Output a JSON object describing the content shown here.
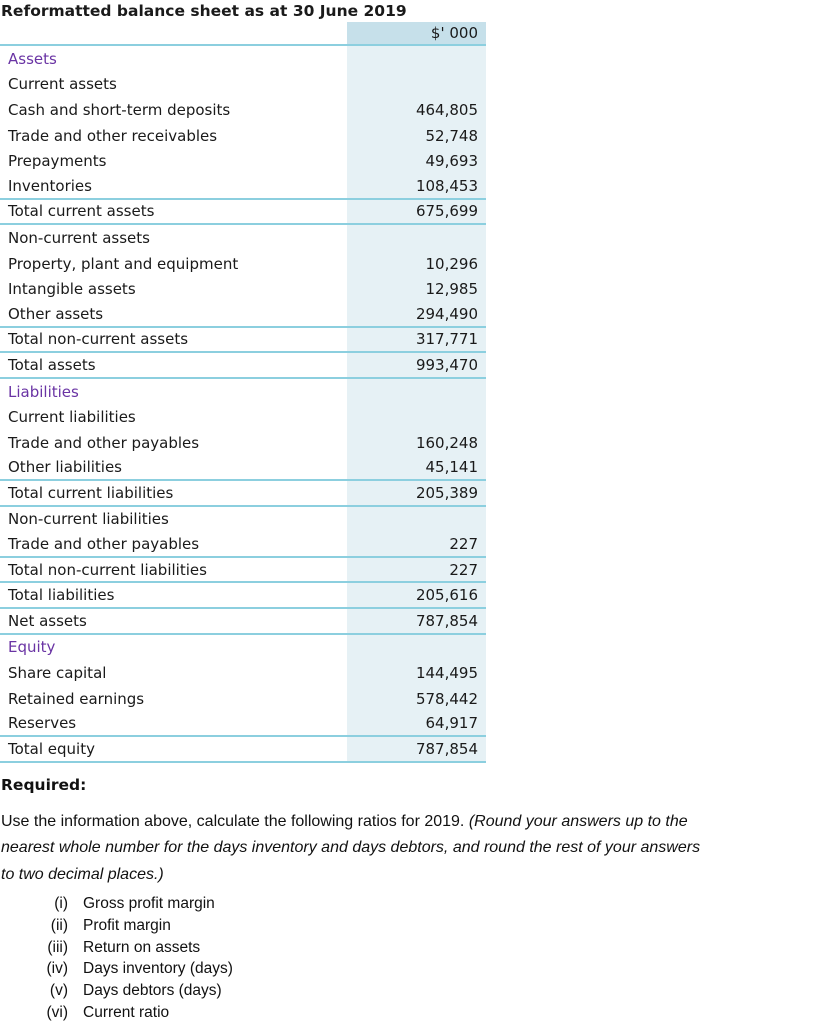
{
  "title": "Reformatted balance sheet as at 30 June 2019",
  "table": {
    "unit_header": "$' 000",
    "rows": [
      {
        "label": "Assets",
        "value": "",
        "style": "section"
      },
      {
        "label": "Current assets",
        "value": ""
      },
      {
        "label": "Cash and short-term deposits",
        "value": "464,805"
      },
      {
        "label": "Trade and other receivables",
        "value": "52,748"
      },
      {
        "label": "Prepayments",
        "value": "49,693"
      },
      {
        "label": "Inventories",
        "value": "108,453",
        "border": true
      },
      {
        "label": "Total current assets",
        "value": "675,699",
        "border": true
      },
      {
        "label": "Non-current assets",
        "value": ""
      },
      {
        "label": "Property, plant and equipment",
        "value": "10,296"
      },
      {
        "label": "Intangible assets",
        "value": "12,985"
      },
      {
        "label": "Other assets",
        "value": "294,490",
        "border": true
      },
      {
        "label": "Total non-current assets",
        "value": "317,771",
        "border": true
      },
      {
        "label": "Total assets",
        "value": "993,470",
        "border": true
      },
      {
        "label": "Liabilities",
        "value": "",
        "style": "section"
      },
      {
        "label": "Current liabilities",
        "value": ""
      },
      {
        "label": "Trade and other payables",
        "value": "160,248"
      },
      {
        "label": "Other liabilities",
        "value": "45,141",
        "border": true
      },
      {
        "label": "Total current liabilities",
        "value": "205,389",
        "border": true
      },
      {
        "label": "Non-current liabilities",
        "value": ""
      },
      {
        "label": "Trade and other payables",
        "value": "227",
        "border": true
      },
      {
        "label": "Total non-current liabilities",
        "value": "227",
        "border": true
      },
      {
        "label": "Total liabilities",
        "value": "205,616",
        "border": true
      },
      {
        "label": "Net assets",
        "value": "787,854",
        "border": true
      },
      {
        "label": "Equity",
        "value": "",
        "style": "section"
      },
      {
        "label": "Share capital",
        "value": "144,495"
      },
      {
        "label": "Retained earnings",
        "value": "578,442"
      },
      {
        "label": "Reserves",
        "value": "64,917",
        "border": true
      },
      {
        "label": "Total equity",
        "value": "787,854",
        "border": true
      }
    ]
  },
  "required": {
    "heading": "Required:",
    "instruction_lines": [
      {
        "normal": "Use the information above, calculate the following ratios for 2019. ",
        "italic": "(Round your answers up to the"
      },
      {
        "italic": "nearest whole number for the days inventory and days debtors, and round the rest of your answers"
      },
      {
        "italic": "to two decimal places.)"
      }
    ],
    "items": [
      {
        "num": "(i)",
        "label": "Gross profit margin"
      },
      {
        "num": "(ii)",
        "label": "Profit margin"
      },
      {
        "num": "(iii)",
        "label": "Return on assets"
      },
      {
        "num": "(iv)",
        "label": "Days inventory (days)"
      },
      {
        "num": "(v)",
        "label": "Days debtors (days)"
      },
      {
        "num": "(vi)",
        "label": "Current ratio"
      }
    ]
  },
  "colors": {
    "header_bg": "#c6e0ea",
    "column_bg": "#e6f1f5",
    "rule": "#8ccfdf",
    "section_heading": "#6a34a4",
    "text": "#1a1a1a"
  }
}
